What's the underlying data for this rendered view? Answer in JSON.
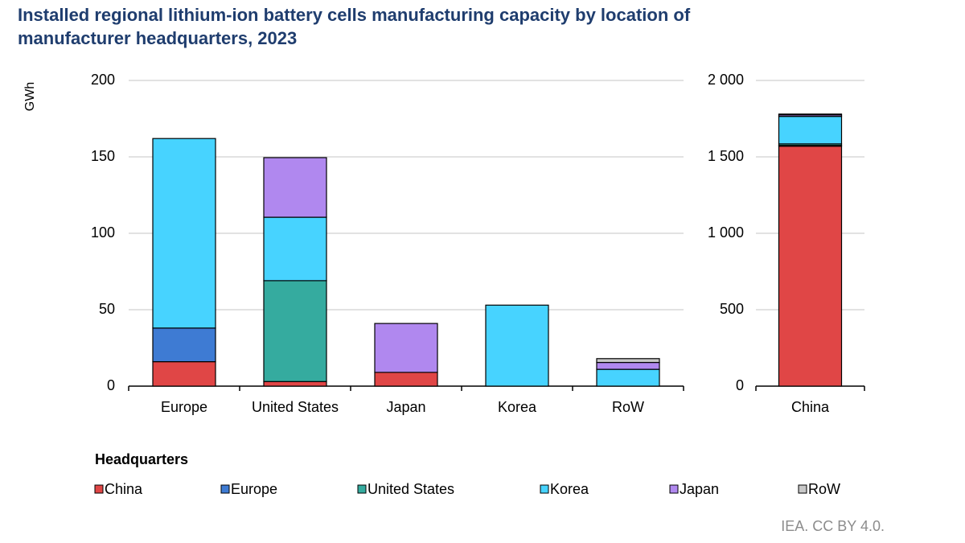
{
  "title": "Installed regional lithium-ion battery cells manufacturing capacity by location of manufacturer headquarters, 2023",
  "y_axis_label": "GWh",
  "legend_title": "Headquarters",
  "source": "IEA. CC BY 4.0.",
  "chart_data": [
    {
      "type": "stacked-bar",
      "categories": [
        "Europe",
        "United States",
        "Japan",
        "Korea",
        "RoW"
      ],
      "series": [
        {
          "name": "China",
          "color": "#e04646",
          "values": [
            16,
            3,
            9,
            0,
            0
          ]
        },
        {
          "name": "Europe",
          "color": "#3e7bd3",
          "values": [
            22,
            0,
            0,
            0,
            0
          ]
        },
        {
          "name": "United States",
          "color": "#35ab9f",
          "values": [
            0,
            66,
            0,
            0,
            0
          ]
        },
        {
          "name": "Korea",
          "color": "#47d3ff",
          "values": [
            124,
            41.5,
            0,
            53,
            11
          ]
        },
        {
          "name": "Japan",
          "color": "#b088ef",
          "values": [
            0,
            39,
            32,
            0,
            4.5
          ]
        },
        {
          "name": "RoW",
          "color": "#c8c8c8",
          "values": [
            0,
            0,
            0,
            0,
            2.5
          ]
        }
      ],
      "ylim": [
        0,
        200
      ],
      "yticks": [
        0,
        50,
        100,
        150,
        200
      ],
      "grid": true
    },
    {
      "type": "stacked-bar",
      "categories": [
        "China"
      ],
      "series": [
        {
          "name": "China",
          "color": "#e04646",
          "values": [
            1570
          ]
        },
        {
          "name": "Europe",
          "color": "#3e7bd3",
          "values": [
            5
          ]
        },
        {
          "name": "United States",
          "color": "#35ab9f",
          "values": [
            10
          ]
        },
        {
          "name": "Korea",
          "color": "#47d3ff",
          "values": [
            180
          ]
        },
        {
          "name": "Japan",
          "color": "#b088ef",
          "values": [
            10
          ]
        },
        {
          "name": "RoW",
          "color": "#c8c8c8",
          "values": [
            5
          ]
        }
      ],
      "ylim": [
        0,
        2000
      ],
      "yticks": [
        0,
        500,
        {
          "value": 1000,
          "label": "1 000"
        },
        {
          "value": 1500,
          "label": "1 500"
        },
        {
          "value": 2000,
          "label": "2 000"
        }
      ],
      "grid": true
    }
  ]
}
